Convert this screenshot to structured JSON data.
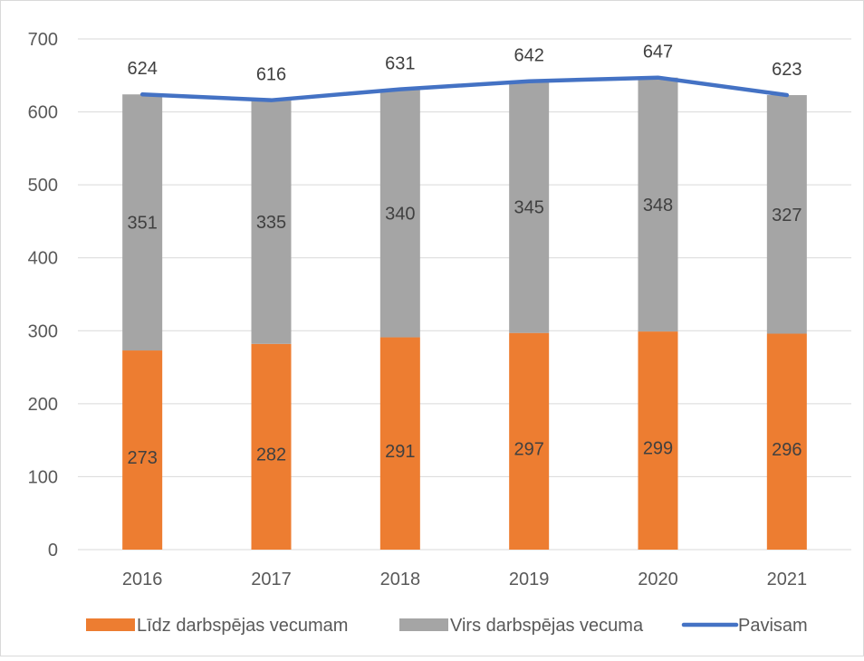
{
  "chart_data": {
    "type": "bar",
    "stacked": true,
    "title": "",
    "xlabel": "",
    "ylabel": "",
    "categories": [
      "2016",
      "2017",
      "2018",
      "2019",
      "2020",
      "2021"
    ],
    "ylim": [
      0,
      700
    ],
    "yticks": [
      0,
      100,
      200,
      300,
      400,
      500,
      600,
      700
    ],
    "grid": true,
    "legend_position": "bottom",
    "series": [
      {
        "name": "Līdz darbspējas vecumam",
        "kind": "bar",
        "color": "#ED7D31",
        "values": [
          273,
          282,
          291,
          297,
          299,
          296
        ],
        "labels": [
          "273",
          "282",
          "291",
          "297",
          "299",
          "296"
        ]
      },
      {
        "name": "Virs darbspējas vecuma",
        "kind": "bar",
        "color": "#A5A5A5",
        "values": [
          351,
          335,
          340,
          345,
          348,
          327
        ],
        "labels": [
          "351",
          "335",
          "340",
          "345",
          "348",
          "327"
        ]
      },
      {
        "name": "Pavisam",
        "kind": "line",
        "color": "#4472C4",
        "values": [
          624,
          616,
          631,
          642,
          647,
          623
        ],
        "labels": [
          "624",
          "616",
          "631",
          "642",
          "647",
          "623"
        ]
      }
    ],
    "colors": {
      "axis_text": "#595959",
      "label_text": "#404040",
      "grid": "#D9D9D9",
      "border": "#D9D9D9"
    }
  }
}
